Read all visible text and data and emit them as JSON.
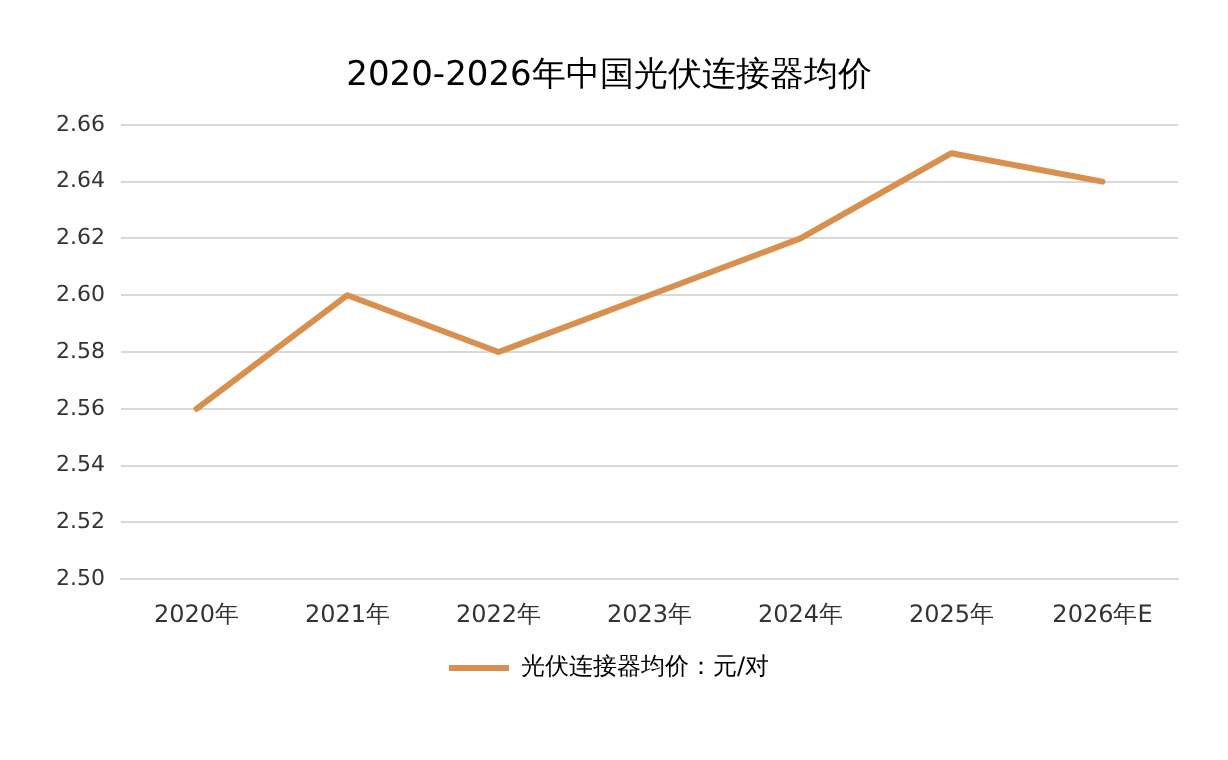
{
  "chart_data": {
    "type": "line",
    "title": "2020-2026年中国光伏连接器均价",
    "categories": [
      "2020年",
      "2021年",
      "2022年",
      "2023年",
      "2024年",
      "2025年",
      "2026年E"
    ],
    "series": [
      {
        "name": "光伏连接器均价：元/对",
        "color": "#d98f4e",
        "values": [
          2.56,
          2.6,
          2.58,
          2.6,
          2.62,
          2.65,
          2.64
        ]
      }
    ],
    "ylim": [
      2.5,
      2.66
    ],
    "yticks": [
      {
        "value": 2.5,
        "label": "2.50"
      },
      2.52,
      2.54,
      2.56,
      2.58,
      {
        "value": 2.6,
        "label": "2.60"
      },
      2.62,
      2.64,
      2.66
    ],
    "grid": "y",
    "legend": "bottom",
    "marker": "none",
    "line_style": "solid"
  }
}
